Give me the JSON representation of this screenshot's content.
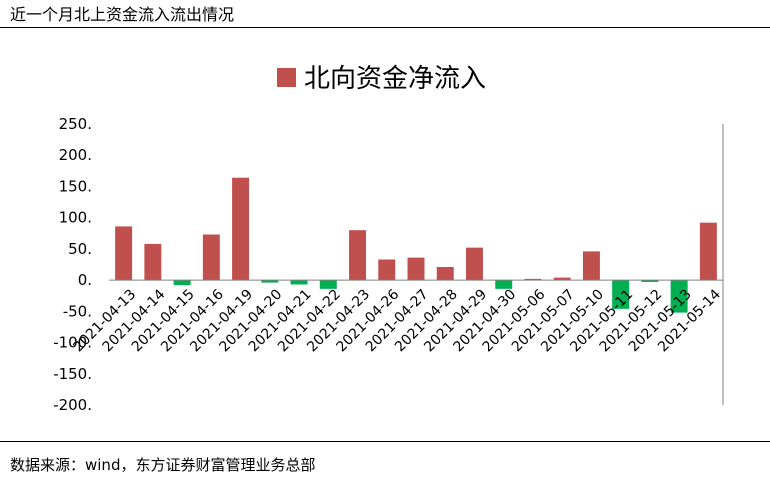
{
  "header": {
    "title": "近一个月北上资金流入流出情况"
  },
  "footer": {
    "source": "数据来源：wind，东方证券财富管理业务总部"
  },
  "colors": {
    "positive": "#c0504d",
    "negative": "#00b050",
    "axis": "#808080"
  },
  "chart_data": {
    "type": "bar",
    "title": "",
    "legend": {
      "entries": [
        "北向资金净流入"
      ],
      "placement": "top-center"
    },
    "categories": [
      "2021-04-13",
      "2021-04-14",
      "2021-04-15",
      "2021-04-16",
      "2021-04-19",
      "2021-04-20",
      "2021-04-21",
      "2021-04-22",
      "2021-04-23",
      "2021-04-26",
      "2021-04-27",
      "2021-04-28",
      "2021-04-29",
      "2021-04-30",
      "2021-05-06",
      "2021-05-07",
      "2021-05-10",
      "2021-05-11",
      "2021-05-12",
      "2021-05-13",
      "2021-05-14"
    ],
    "series": [
      {
        "name": "北向资金净流入",
        "values": [
          86,
          58,
          -8,
          73,
          164,
          -4,
          -7,
          -14,
          80,
          33,
          36,
          21,
          52,
          -14,
          2,
          4,
          46,
          -46,
          -3,
          -52,
          92
        ]
      }
    ],
    "yticks": [
      "250.",
      "200.",
      "150.",
      "100.",
      "50.",
      "0.",
      "-50.",
      "-100.",
      "-150.",
      "-200."
    ],
    "ylim": [
      -200,
      250
    ],
    "grid": false,
    "xlabel": "",
    "ylabel": ""
  }
}
